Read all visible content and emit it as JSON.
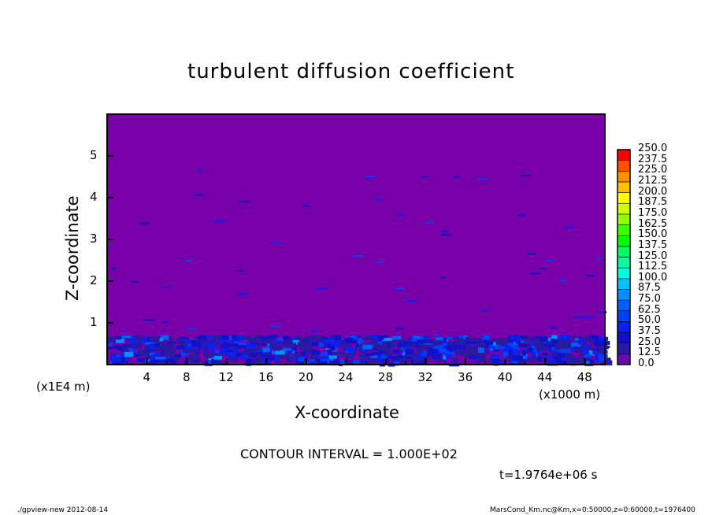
{
  "chart_data": {
    "type": "heatmap",
    "title": "turbulent diffusion coefficient",
    "xlabel": "X-coordinate",
    "ylabel": "Z-coordinate",
    "x_unit": "(x1000 m)",
    "y_unit": "(x1E4 m)",
    "xlim": [
      0,
      50
    ],
    "ylim": [
      0,
      6
    ],
    "x_ticks": [
      "4",
      "8",
      "12",
      "16",
      "20",
      "24",
      "28",
      "32",
      "36",
      "40",
      "44",
      "48"
    ],
    "y_ticks": [
      "1",
      "2",
      "3",
      "4",
      "5"
    ],
    "colorbar": {
      "levels": [
        "0.0",
        "12.5",
        "25.0",
        "37.5",
        "50.0",
        "62.5",
        "75.0",
        "87.5",
        "100.0",
        "112.5",
        "125.0",
        "137.5",
        "150.0",
        "162.5",
        "175.0",
        "187.5",
        "200.0",
        "212.5",
        "225.0",
        "237.5",
        "250.0"
      ],
      "colors": [
        "#6a0aa8",
        "#2a1aa0",
        "#1010c8",
        "#0a20f0",
        "#0040ff",
        "#0060ff",
        "#0090ff",
        "#00c0ff",
        "#00ffe0",
        "#00ffa0",
        "#00ff60",
        "#00ff00",
        "#40ff00",
        "#90ff00",
        "#d0ff00",
        "#ffff00",
        "#ffc000",
        "#ff9000",
        "#ff5000",
        "#ff0000",
        "#ff4040",
        "#ff8080"
      ]
    },
    "description_note": "",
    "contour_interval": "CONTOUR INTERVAL = 1.000E+02",
    "time": "t=1.9764e+06 s",
    "background_color": "#7800a8"
  },
  "footer": {
    "left": "./gpview-new  2012-08-14",
    "right": "MarsCond_Km.nc@Km,x=0:50000,z=0:60000,t=1976400"
  }
}
